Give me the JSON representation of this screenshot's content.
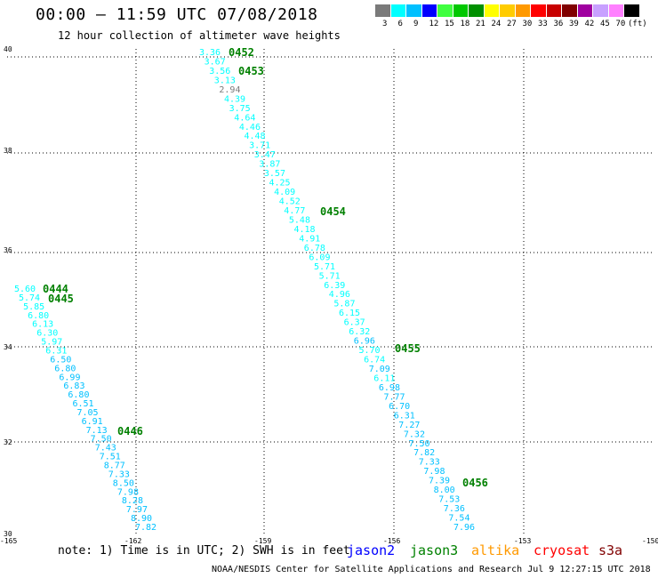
{
  "header": {
    "title": "00:00 – 11:59 UTC 07/08/2018",
    "subtitle": "12 hour collection of altimeter wave heights"
  },
  "colorbar": {
    "colors": [
      "#7a7a7a",
      "#00ffff",
      "#00c0ff",
      "#0000ff",
      "#40ff40",
      "#00c800",
      "#009000",
      "#ffff00",
      "#ffcc00",
      "#ff9900",
      "#ff0000",
      "#c80000",
      "#800000",
      "#a000a0",
      "#c8a0ff",
      "#ff80ff",
      "#000000"
    ],
    "labels": [
      "3",
      "6",
      "9",
      "12",
      "15",
      "18",
      "21",
      "24",
      "27",
      "30",
      "33",
      "36",
      "39",
      "42",
      "45",
      "70",
      "(ft)"
    ]
  },
  "axes": {
    "lat_labels": [
      "40",
      "38",
      "36",
      "34",
      "32",
      "30"
    ],
    "lon_labels": [
      "-165",
      "-162",
      "-159",
      "-156",
      "-153",
      "-150"
    ]
  },
  "passes": [
    {
      "label": "0452",
      "color": "#008000"
    },
    {
      "label": "0453",
      "color": "#008000"
    },
    {
      "label": "0454",
      "color": "#008000"
    },
    {
      "label": "0455",
      "color": "#008000"
    },
    {
      "label": "0456",
      "color": "#008000"
    },
    {
      "label": "0444",
      "color": "#008000"
    },
    {
      "label": "0445",
      "color": "#008000"
    },
    {
      "label": "0446",
      "color": "#008000"
    }
  ],
  "tracks": [
    {
      "values": [
        "3.36",
        "3.67",
        "3.56",
        "3.13",
        "2.94",
        "4.39",
        "3.75",
        "4.64",
        "4.46",
        "4.48",
        "3.71",
        "3.47",
        "3.87",
        "3.57",
        "4.25",
        "4.09",
        "4.52",
        "4.77",
        "5.48",
        "4.18",
        "4.91",
        "6.78",
        "6.09",
        "5.71",
        "5.71",
        "6.39",
        "4.96",
        "5.87",
        "6.15",
        "6.37",
        "6.32",
        "6.96",
        "5.70",
        "6.74",
        "7.09",
        "6.11",
        "6.98",
        "7.77",
        "6.70",
        "6.31",
        "7.27",
        "7.32",
        "7.50",
        "7.82",
        "7.33",
        "7.98",
        "7.39",
        "8.00",
        "7.53",
        "7.36",
        "7.54",
        "7.96"
      ],
      "colors": [
        "#00ffff",
        "#00ffff",
        "#00ffff",
        "#00ffff",
        "#7a7a7a",
        "#00ffff",
        "#00ffff",
        "#00ffff",
        "#00ffff",
        "#00ffff",
        "#00ffff",
        "#00ffff",
        "#00ffff",
        "#00ffff",
        "#00ffff",
        "#00ffff",
        "#00ffff",
        "#00ffff",
        "#00ffff",
        "#00ffff",
        "#00ffff",
        "#00ffff",
        "#00ffff",
        "#00ffff",
        "#00ffff",
        "#00ffff",
        "#00ffff",
        "#00ffff",
        "#00ffff",
        "#00ffff",
        "#00ffff",
        "#00c0ff",
        "#00ffff",
        "#00ffff",
        "#00c0ff",
        "#00ffff",
        "#00c0ff",
        "#00c0ff",
        "#00c0ff",
        "#00c0ff",
        "#00c0ff",
        "#00c0ff",
        "#00c0ff",
        "#00c0ff",
        "#00c0ff",
        "#00c0ff",
        "#00c0ff",
        "#00c0ff",
        "#00c0ff",
        "#00c0ff",
        "#00c0ff",
        "#00c0ff"
      ]
    },
    {
      "values": [
        "5.60",
        "5.74",
        "5.85",
        "6.80",
        "6.13",
        "6.30",
        "5.97",
        "6.31",
        "6.50",
        "6.80",
        "6.99",
        "6.83",
        "6.80",
        "6.51",
        "7.05",
        "6.91",
        "7.13",
        "7.50",
        "7.43",
        "7.51",
        "8.77",
        "7.33",
        "8.50",
        "7.98",
        "8.28",
        "7.97",
        "8.90",
        "7.82"
      ],
      "colors": [
        "#00ffff",
        "#00ffff",
        "#00ffff",
        "#00ffff",
        "#00ffff",
        "#00ffff",
        "#00ffff",
        "#00ffff",
        "#00c0ff",
        "#00c0ff",
        "#00c0ff",
        "#00c0ff",
        "#00c0ff",
        "#00c0ff",
        "#00c0ff",
        "#00c0ff",
        "#00c0ff",
        "#00c0ff",
        "#00c0ff",
        "#00c0ff",
        "#00c0ff",
        "#00c0ff",
        "#00c0ff",
        "#00c0ff",
        "#00c0ff",
        "#00c0ff",
        "#00c0ff",
        "#00c0ff"
      ]
    }
  ],
  "note": "note: 1) Time is in UTC; 2) SWH is in feet",
  "satellites": [
    {
      "name": "jason2",
      "color": "#0000ff"
    },
    {
      "name": "jason3",
      "color": "#008000"
    },
    {
      "name": "altika",
      "color": "#ff9900"
    },
    {
      "name": "cryosat",
      "color": "#ff0000"
    },
    {
      "name": "s3a",
      "color": "#800000"
    }
  ],
  "footer": "NOAA/NESDIS Center for Satellite Applications and Research   Jul  9 12:27:15 UTC 2018"
}
